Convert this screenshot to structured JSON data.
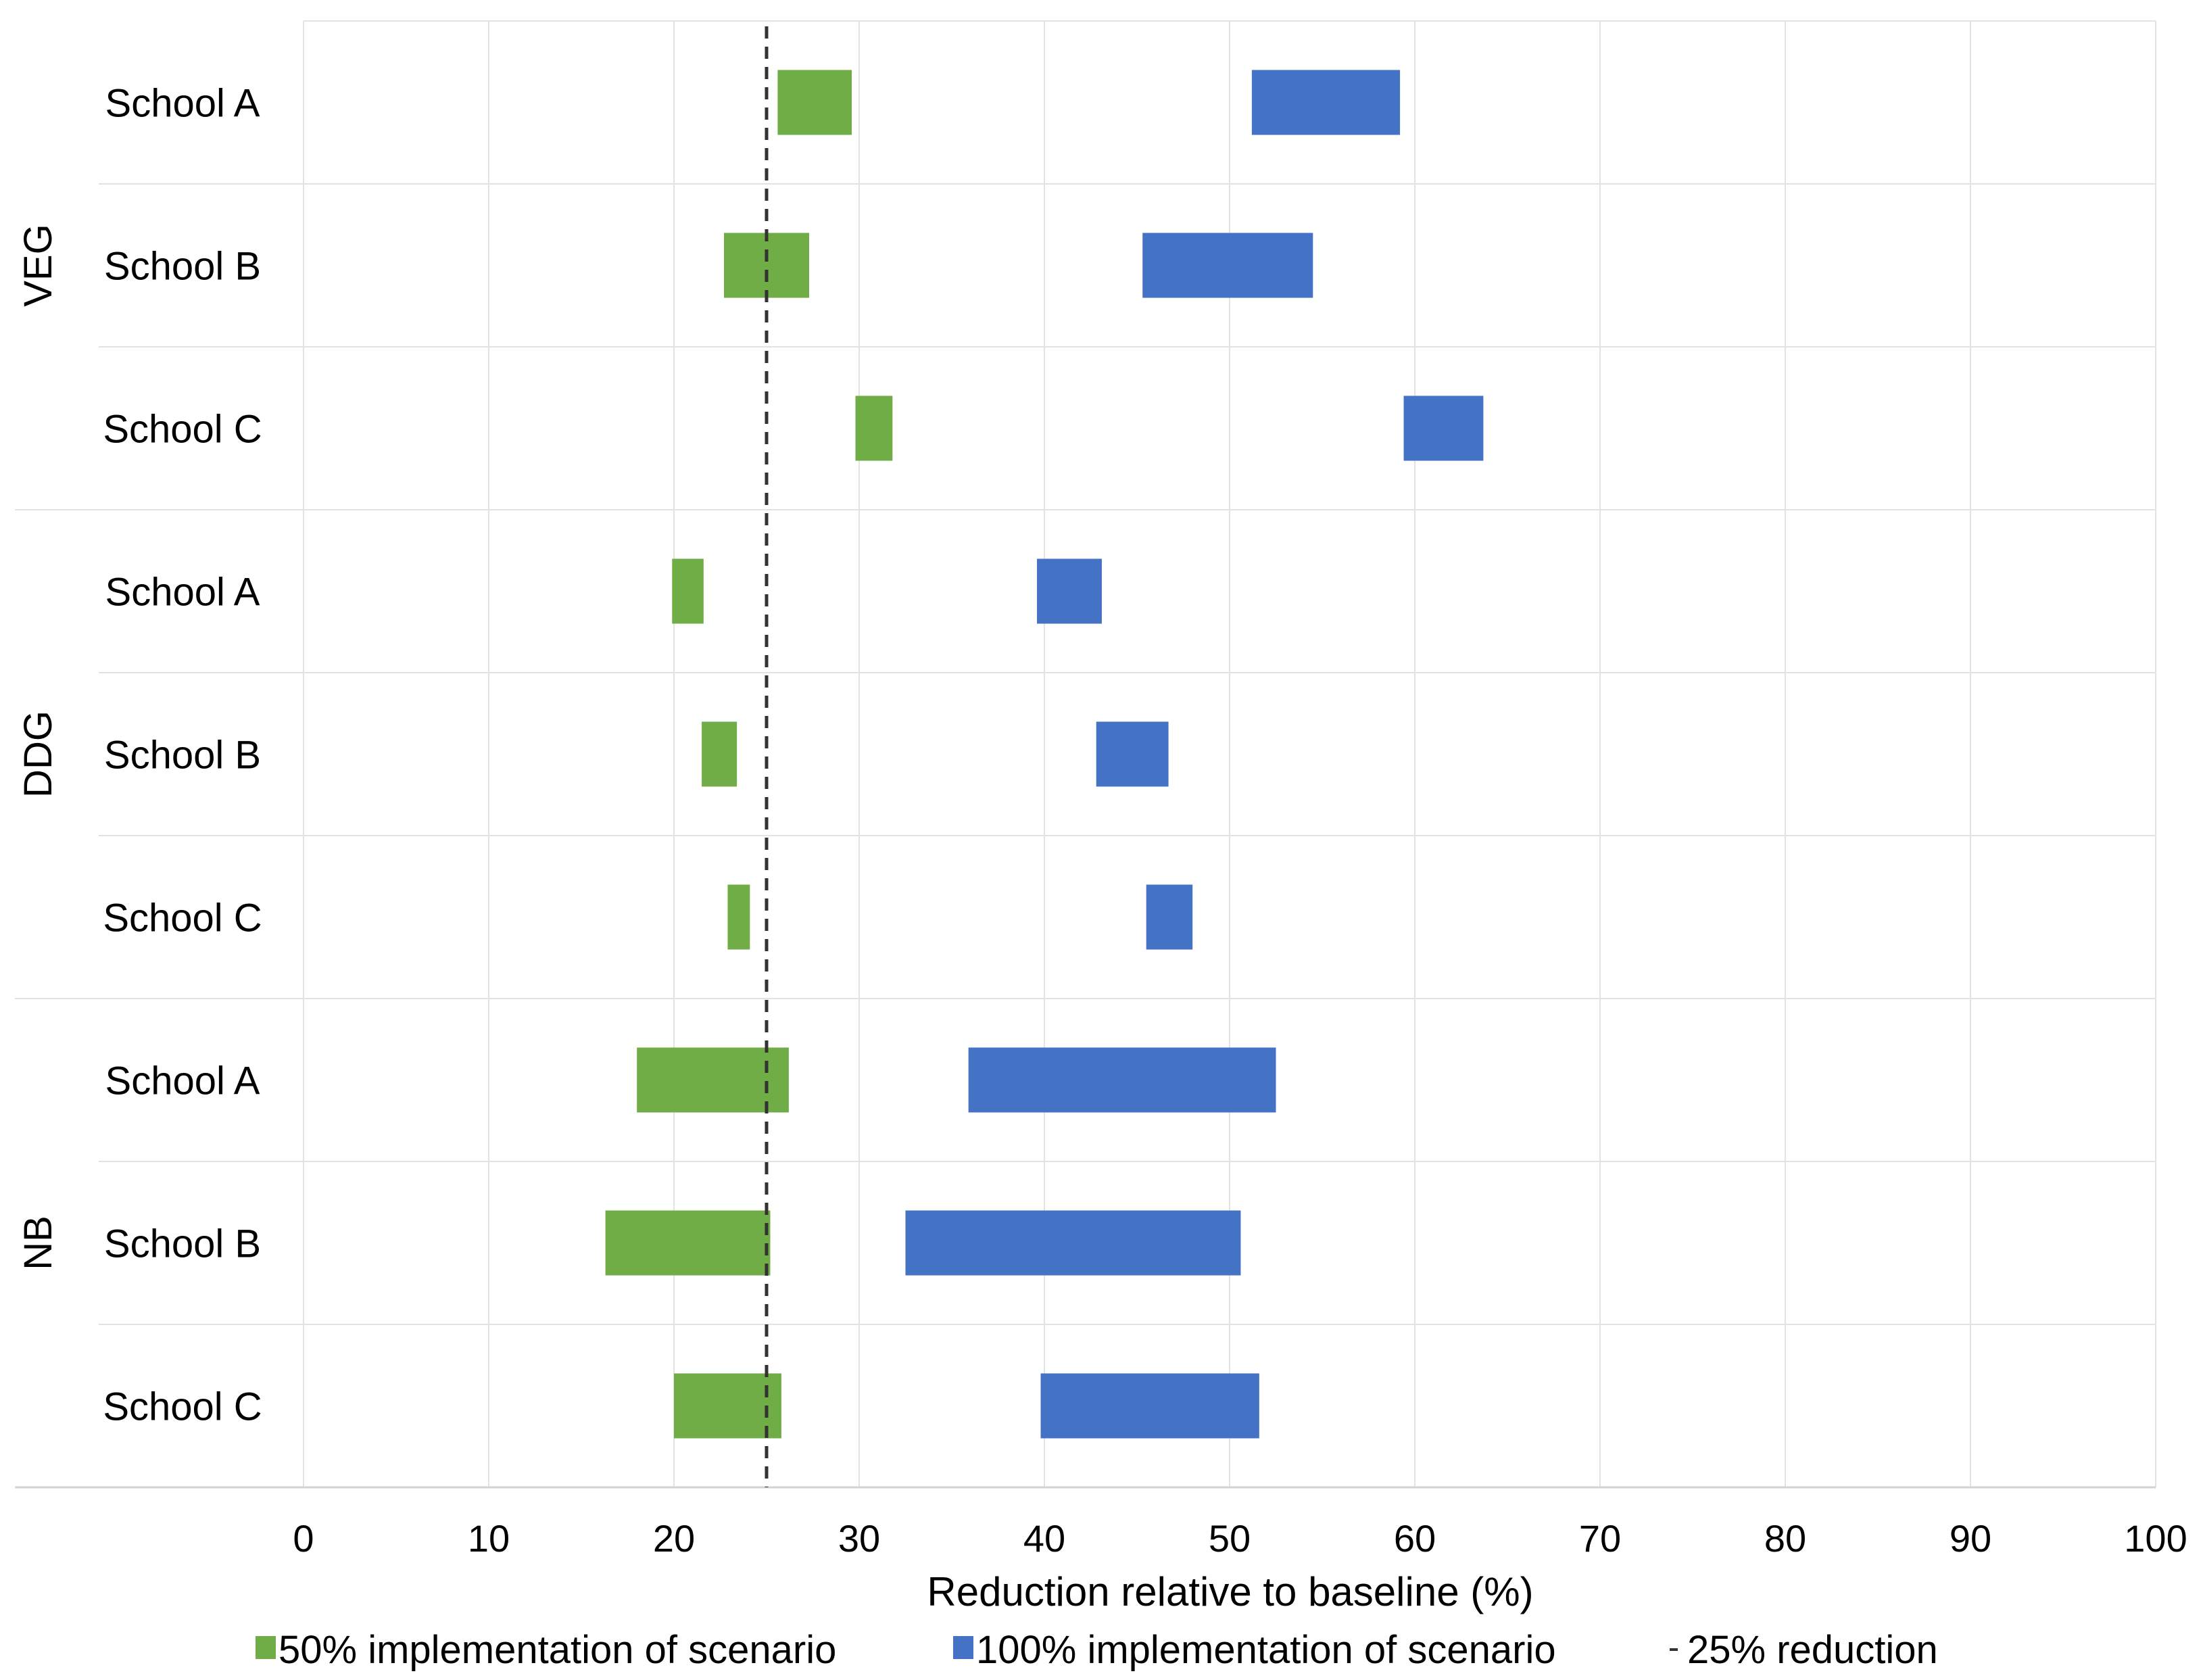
{
  "chart_data": {
    "type": "bar",
    "orientation": "horizontal-range",
    "xlabel": "Reduction relative to baseline (%)",
    "xlim": [
      0,
      100
    ],
    "xticks": [
      0,
      10,
      20,
      30,
      40,
      50,
      60,
      70,
      80,
      90,
      100
    ],
    "grid": true,
    "legend_position": "bottom",
    "groups": [
      {
        "name": "VEG",
        "categories": [
          "School A",
          "School B",
          "School C"
        ]
      },
      {
        "name": "DDG",
        "categories": [
          "School A",
          "School B",
          "School C"
        ]
      },
      {
        "name": "NB",
        "categories": [
          "School A",
          "School B",
          "School C"
        ]
      }
    ],
    "series": [
      {
        "name": "50% implementation of scenario",
        "color": "#70ad47",
        "ranges": [
          [
            25.6,
            29.6
          ],
          [
            22.7,
            27.3
          ],
          [
            29.8,
            31.8
          ],
          [
            19.9,
            21.6
          ],
          [
            21.5,
            23.4
          ],
          [
            22.9,
            24.1
          ],
          [
            18.0,
            26.2
          ],
          [
            16.3,
            25.2
          ],
          [
            20.0,
            25.8
          ]
        ]
      },
      {
        "name": "100% implementation of scenario",
        "color": "#4472c4",
        "ranges": [
          [
            51.2,
            59.2
          ],
          [
            45.3,
            54.5
          ],
          [
            59.4,
            63.7
          ],
          [
            39.6,
            43.1
          ],
          [
            42.8,
            46.7
          ],
          [
            45.5,
            48.0
          ],
          [
            35.9,
            52.5
          ],
          [
            32.5,
            50.6
          ],
          [
            39.8,
            51.6
          ]
        ]
      }
    ],
    "reference_line": {
      "name": "25% reduction",
      "value": 25,
      "style": "dashed"
    }
  }
}
